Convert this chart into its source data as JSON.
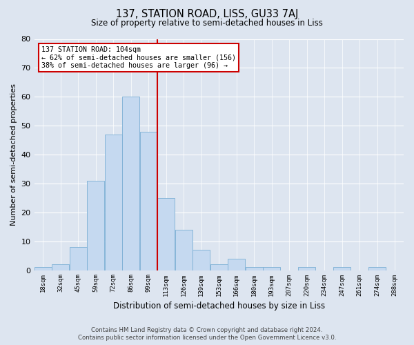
{
  "title": "137, STATION ROAD, LISS, GU33 7AJ",
  "subtitle": "Size of property relative to semi-detached houses in Liss",
  "xlabel": "Distribution of semi-detached houses by size in Liss",
  "ylabel": "Number of semi-detached properties",
  "bin_labels": [
    "18sqm",
    "32sqm",
    "45sqm",
    "59sqm",
    "72sqm",
    "86sqm",
    "99sqm",
    "113sqm",
    "126sqm",
    "139sqm",
    "153sqm",
    "166sqm",
    "180sqm",
    "193sqm",
    "207sqm",
    "220sqm",
    "234sqm",
    "247sqm",
    "261sqm",
    "274sqm",
    "288sqm"
  ],
  "bar_heights": [
    1,
    2,
    8,
    31,
    47,
    60,
    48,
    25,
    14,
    7,
    2,
    4,
    1,
    1,
    0,
    1,
    0,
    1,
    0,
    1,
    0
  ],
  "bar_color": "#c5d9f0",
  "bar_edge_color": "#7bafd4",
  "background_color": "#dde5f0",
  "grid_color": "#ffffff",
  "marker_bin_index": 6.5,
  "annotation_title": "137 STATION ROAD: 104sqm",
  "annotation_line1": "← 62% of semi-detached houses are smaller (156)",
  "annotation_line2": "38% of semi-detached houses are larger (96) →",
  "annotation_box_color": "#ffffff",
  "annotation_box_edge": "#cc0000",
  "vline_color": "#cc0000",
  "ylim": [
    0,
    80
  ],
  "yticks": [
    0,
    10,
    20,
    30,
    40,
    50,
    60,
    70,
    80
  ],
  "footnote1": "Contains HM Land Registry data © Crown copyright and database right 2024.",
  "footnote2": "Contains public sector information licensed under the Open Government Licence v3.0."
}
